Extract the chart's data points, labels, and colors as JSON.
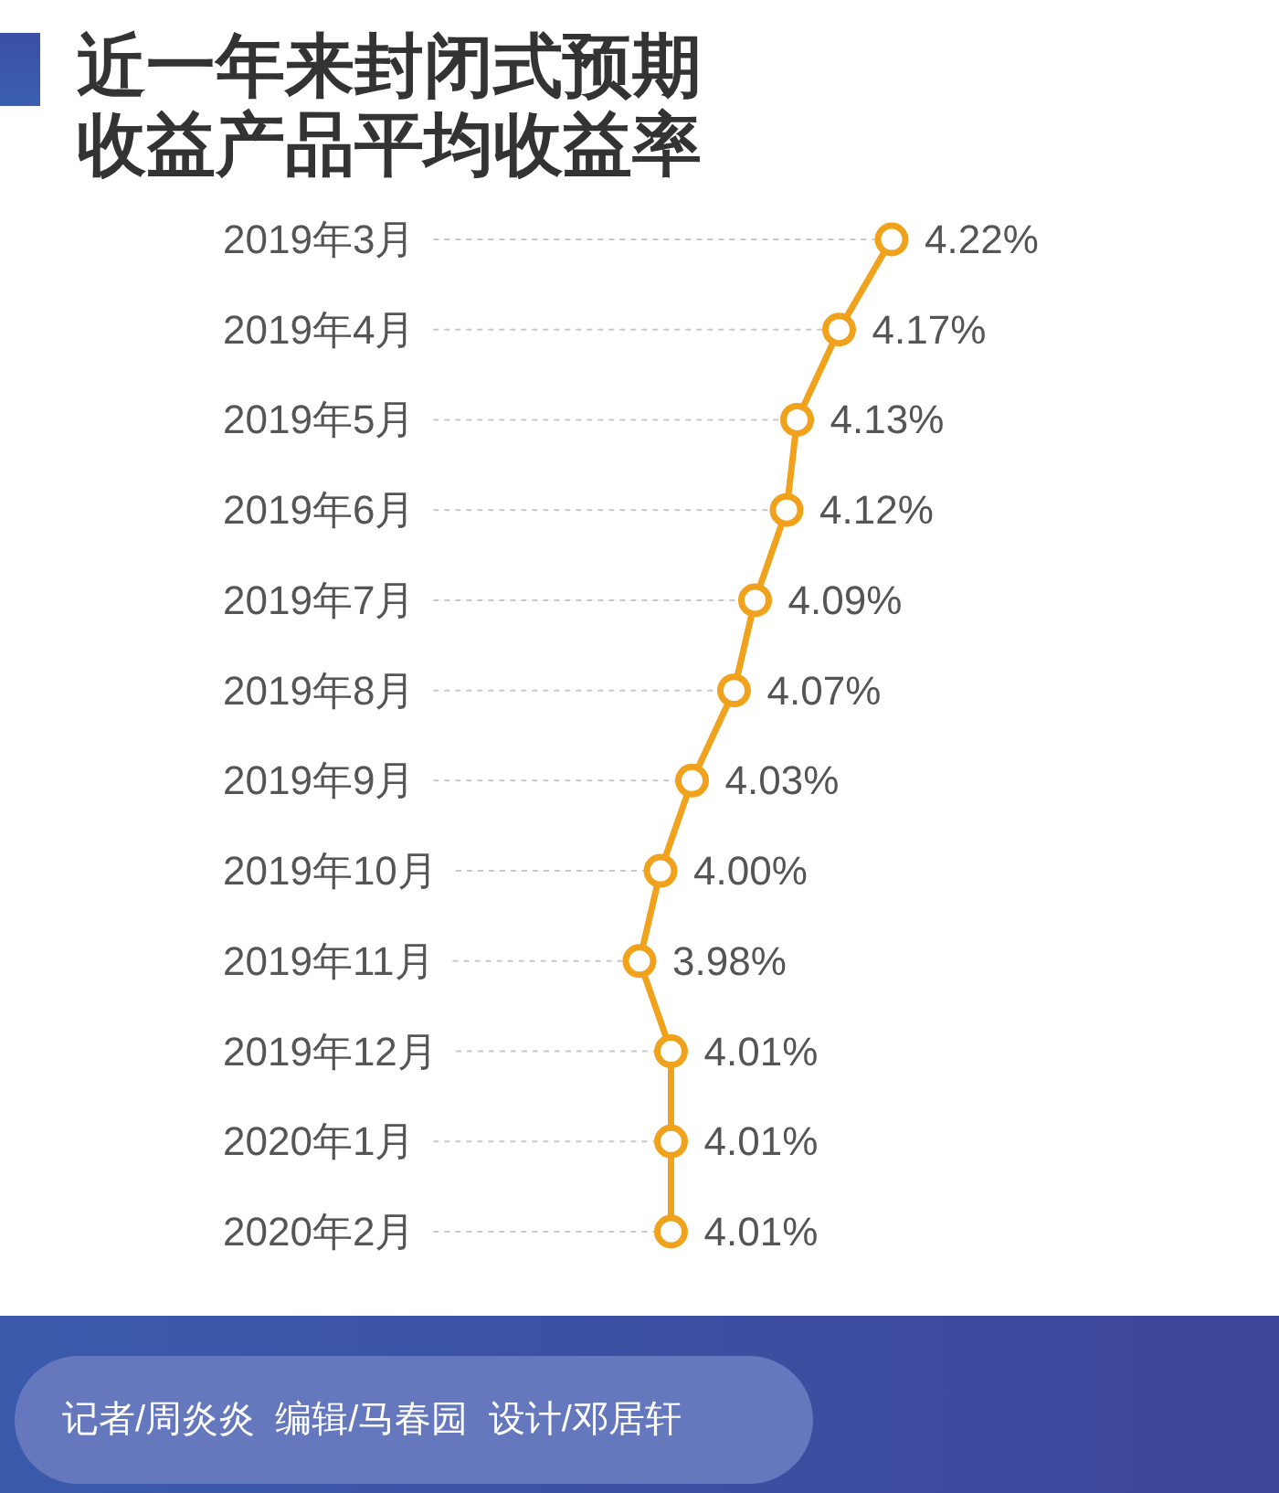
{
  "chart_data": {
    "type": "line",
    "orientation": "horizontal",
    "title": "近一年来封闭式预期收益产品平均收益率",
    "categories": [
      "2019年3月",
      "2019年4月",
      "2019年5月",
      "2019年6月",
      "2019年7月",
      "2019年8月",
      "2019年9月",
      "2019年10月",
      "2019年11月",
      "2019年12月",
      "2020年1月",
      "2020年2月"
    ],
    "values": [
      4.22,
      4.17,
      4.13,
      4.12,
      4.09,
      4.07,
      4.03,
      4.0,
      3.98,
      4.01,
      4.01,
      4.01
    ],
    "value_labels": [
      "4.22%",
      "4.17%",
      "4.13%",
      "4.12%",
      "4.09%",
      "4.07%",
      "4.03%",
      "4.00%",
      "3.98%",
      "4.01%",
      "4.01%",
      "4.01%"
    ],
    "color": "#f0a21c",
    "marker": "circle",
    "grid": "y",
    "annotations": [
      "记者/周炎炎  编辑/马春园  设计/邓居轩"
    ]
  }
}
